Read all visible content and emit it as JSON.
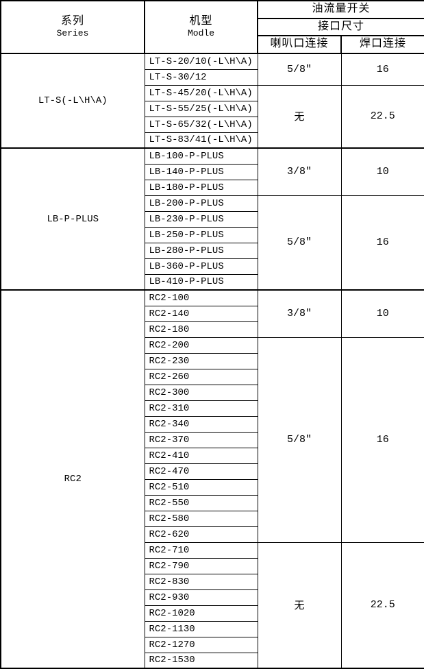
{
  "table": {
    "header": {
      "col1_zh": "系列",
      "col1_en": "Series",
      "col2_zh": "机型",
      "col2_en": "Modle",
      "group_title": "油流量开关",
      "group_subtitle": "接口尺寸",
      "sub_col_flare": "喇叭口连接",
      "sub_col_weld": "焊口连接"
    },
    "colors": {
      "border": "#000000",
      "text": "#000000",
      "background": "#ffffff"
    },
    "sections": [
      {
        "series": "LT-S(-L\\H\\A)",
        "groups": [
          {
            "models": [
              "LT-S-20/10(-L\\H\\A)",
              "LT-S-30/12"
            ],
            "flare": "5/8\"",
            "weld": "16"
          },
          {
            "models": [
              "LT-S-45/20(-L\\H\\A)",
              "LT-S-55/25(-L\\H\\A)",
              "LT-S-65/32(-L\\H\\A)",
              "LT-S-83/41(-L\\H\\A)"
            ],
            "flare": "无",
            "weld": "22.5"
          }
        ]
      },
      {
        "series": "LB-P-PLUS",
        "groups": [
          {
            "models": [
              "LB-100-P-PLUS",
              "LB-140-P-PLUS",
              "LB-180-P-PLUS"
            ],
            "flare": "3/8\"",
            "weld": "10"
          },
          {
            "models": [
              "LB-200-P-PLUS",
              "LB-230-P-PLUS",
              "LB-250-P-PLUS",
              "LB-280-P-PLUS",
              "LB-360-P-PLUS",
              "LB-410-P-PLUS"
            ],
            "flare": "5/8\"",
            "weld": "16"
          }
        ]
      },
      {
        "series": "RC2",
        "groups": [
          {
            "models": [
              "RC2-100",
              "RC2-140",
              "RC2-180"
            ],
            "flare": "3/8\"",
            "weld": "10"
          },
          {
            "models": [
              "RC2-200",
              "RC2-230",
              "RC2-260",
              "RC2-300",
              "RC2-310",
              "RC2-340",
              "RC2-370",
              "RC2-410",
              "RC2-470",
              "RC2-510",
              "RC2-550",
              "RC2-580",
              "RC2-620"
            ],
            "flare": "5/8\"",
            "weld": "16"
          },
          {
            "models": [
              "RC2-710",
              "RC2-790",
              "RC2-830",
              "RC2-930",
              "RC2-1020",
              "RC2-1130",
              "RC2-1270",
              "RC2-1530"
            ],
            "flare": "无",
            "weld": "22.5"
          }
        ]
      }
    ]
  }
}
